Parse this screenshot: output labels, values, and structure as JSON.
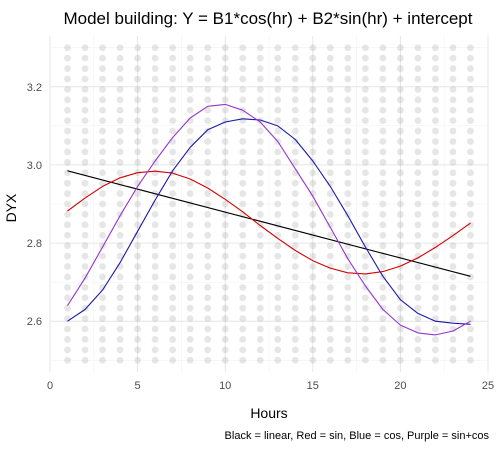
{
  "chart_data": {
    "type": "scatter",
    "title": "Model building: Y = B1*cos(hr) + B2*sin(hr) + intercept",
    "xlabel": "Hours",
    "ylabel": "DYX",
    "caption": "Black = linear, Red = sin, Blue = cos, Purple = sin+cos",
    "xlim": [
      0,
      25
    ],
    "ylim": [
      2.47,
      3.33
    ],
    "x_ticks": [
      0,
      5,
      10,
      15,
      20,
      25
    ],
    "y_ticks": [
      2.6,
      2.8,
      3.0,
      3.2
    ],
    "grid": true,
    "scatter_points": {
      "x_hours": [
        1,
        2,
        3,
        4,
        5,
        6,
        7,
        8,
        9,
        10,
        11,
        12,
        13,
        14,
        15,
        16,
        17,
        18,
        19,
        20,
        21,
        22,
        23,
        24
      ],
      "y_min": 2.5,
      "y_max": 3.3,
      "color": "#a6a6a6"
    },
    "series": [
      {
        "color": "#000000",
        "x": [
          1,
          24
        ],
        "values": [
          2.985,
          2.715
        ]
      },
      {
        "color": "#d40000",
        "x": [
          1,
          2,
          3,
          4,
          5,
          6,
          7,
          8,
          9,
          10,
          11,
          12,
          13,
          14,
          15,
          16,
          17,
          18,
          19,
          20,
          21,
          22,
          23,
          24
        ],
        "values": [
          2.882,
          2.915,
          2.945,
          2.967,
          2.98,
          2.984,
          2.979,
          2.964,
          2.941,
          2.912,
          2.88,
          2.845,
          2.812,
          2.781,
          2.755,
          2.736,
          2.724,
          2.721,
          2.727,
          2.741,
          2.762,
          2.789,
          2.819,
          2.851
        ]
      },
      {
        "color": "#1a1aa8",
        "x": [
          1,
          2,
          3,
          4,
          5,
          6,
          7,
          8,
          9,
          10,
          11,
          12,
          13,
          14,
          15,
          16,
          17,
          18,
          19,
          20,
          21,
          22,
          23,
          24
        ],
        "values": [
          2.6,
          2.63,
          2.68,
          2.75,
          2.83,
          2.91,
          2.985,
          3.045,
          3.09,
          3.11,
          3.118,
          3.115,
          3.1,
          3.065,
          3.01,
          2.945,
          2.87,
          2.79,
          2.715,
          2.655,
          2.62,
          2.6,
          2.595,
          2.592
        ]
      },
      {
        "color": "#9932cc",
        "x": [
          1,
          2,
          3,
          4,
          5,
          6,
          7,
          8,
          9,
          10,
          11,
          12,
          13,
          14,
          15,
          16,
          17,
          18,
          19,
          20,
          21,
          22,
          23,
          24
        ],
        "values": [
          2.64,
          2.71,
          2.79,
          2.87,
          2.945,
          3.01,
          3.07,
          3.12,
          3.15,
          3.155,
          3.14,
          3.11,
          3.06,
          2.99,
          2.92,
          2.84,
          2.76,
          2.69,
          2.63,
          2.59,
          2.57,
          2.565,
          2.575,
          2.6
        ]
      }
    ]
  }
}
